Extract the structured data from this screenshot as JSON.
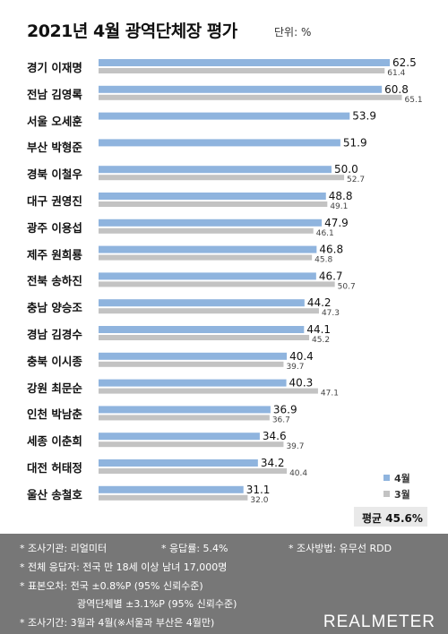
{
  "title": "2021년 4월 광역단체장 평가",
  "unit": "단위: %",
  "legend": {
    "april": "4월",
    "march": "3월"
  },
  "colors": {
    "april": "#8fb4de",
    "march": "#c3c3c3"
  },
  "average": "평균 45.6%",
  "chart_data": {
    "type": "bar",
    "orientation": "horizontal",
    "title": "2021년 4월 광역단체장 평가",
    "unit": "단위: %",
    "categories": [
      "경기 이재명",
      "전남 김영록",
      "서울 오세훈",
      "부산 박형준",
      "경북 이철우",
      "대구 권영진",
      "광주 이용섭",
      "제주 원희룡",
      "전북 송하진",
      "충남 양승조",
      "경남 김경수",
      "충북 이시종",
      "강원 최문순",
      "인천 박남춘",
      "세종 이춘희",
      "대전 허태정",
      "울산 송철호"
    ],
    "series": [
      {
        "name": "4월",
        "values": [
          62.5,
          60.8,
          53.9,
          51.9,
          50.0,
          48.8,
          47.9,
          46.8,
          46.7,
          44.2,
          44.1,
          40.4,
          40.3,
          36.9,
          34.6,
          34.2,
          31.1
        ]
      },
      {
        "name": "3월",
        "values": [
          61.4,
          65.1,
          null,
          null,
          52.7,
          49.1,
          46.1,
          45.8,
          50.7,
          47.3,
          45.2,
          39.7,
          47.1,
          36.7,
          39.7,
          40.4,
          32.0
        ]
      }
    ],
    "april_labels": [
      "62.5",
      "60.8",
      "53.9",
      "51.9",
      "50.0",
      "48.8",
      "47.9",
      "46.8",
      "46.7",
      "44.2",
      "44.1",
      "40.4",
      "40.3",
      "36.9",
      "34.6",
      "34.2",
      "31.1"
    ],
    "march_labels": [
      "61.4",
      "65.1",
      "",
      "",
      "52.7",
      "49.1",
      "46.1",
      "45.8",
      "50.7",
      "47.3",
      "45.2",
      "39.7",
      "47.1",
      "36.7",
      "39.7",
      "40.4",
      "32.0"
    ]
  },
  "footer": {
    "agency": "* 조사기관: 리얼미터",
    "response": "* 응답률: 5.4%",
    "method": "* 조사방법: 유무선 RDD",
    "respondents": "* 전체 응답자: 전국 만 18세 이상 남녀 17,000명",
    "error1": "* 표본오차: 전국 ±0.8%P (95% 신뢰수준)",
    "error2": "광역단체별 ±3.1%P (95% 신뢰수준)",
    "period": "* 조사기간: 3월과 4월(※서울과 부산은 4월만)",
    "brand": "REALMETER"
  }
}
